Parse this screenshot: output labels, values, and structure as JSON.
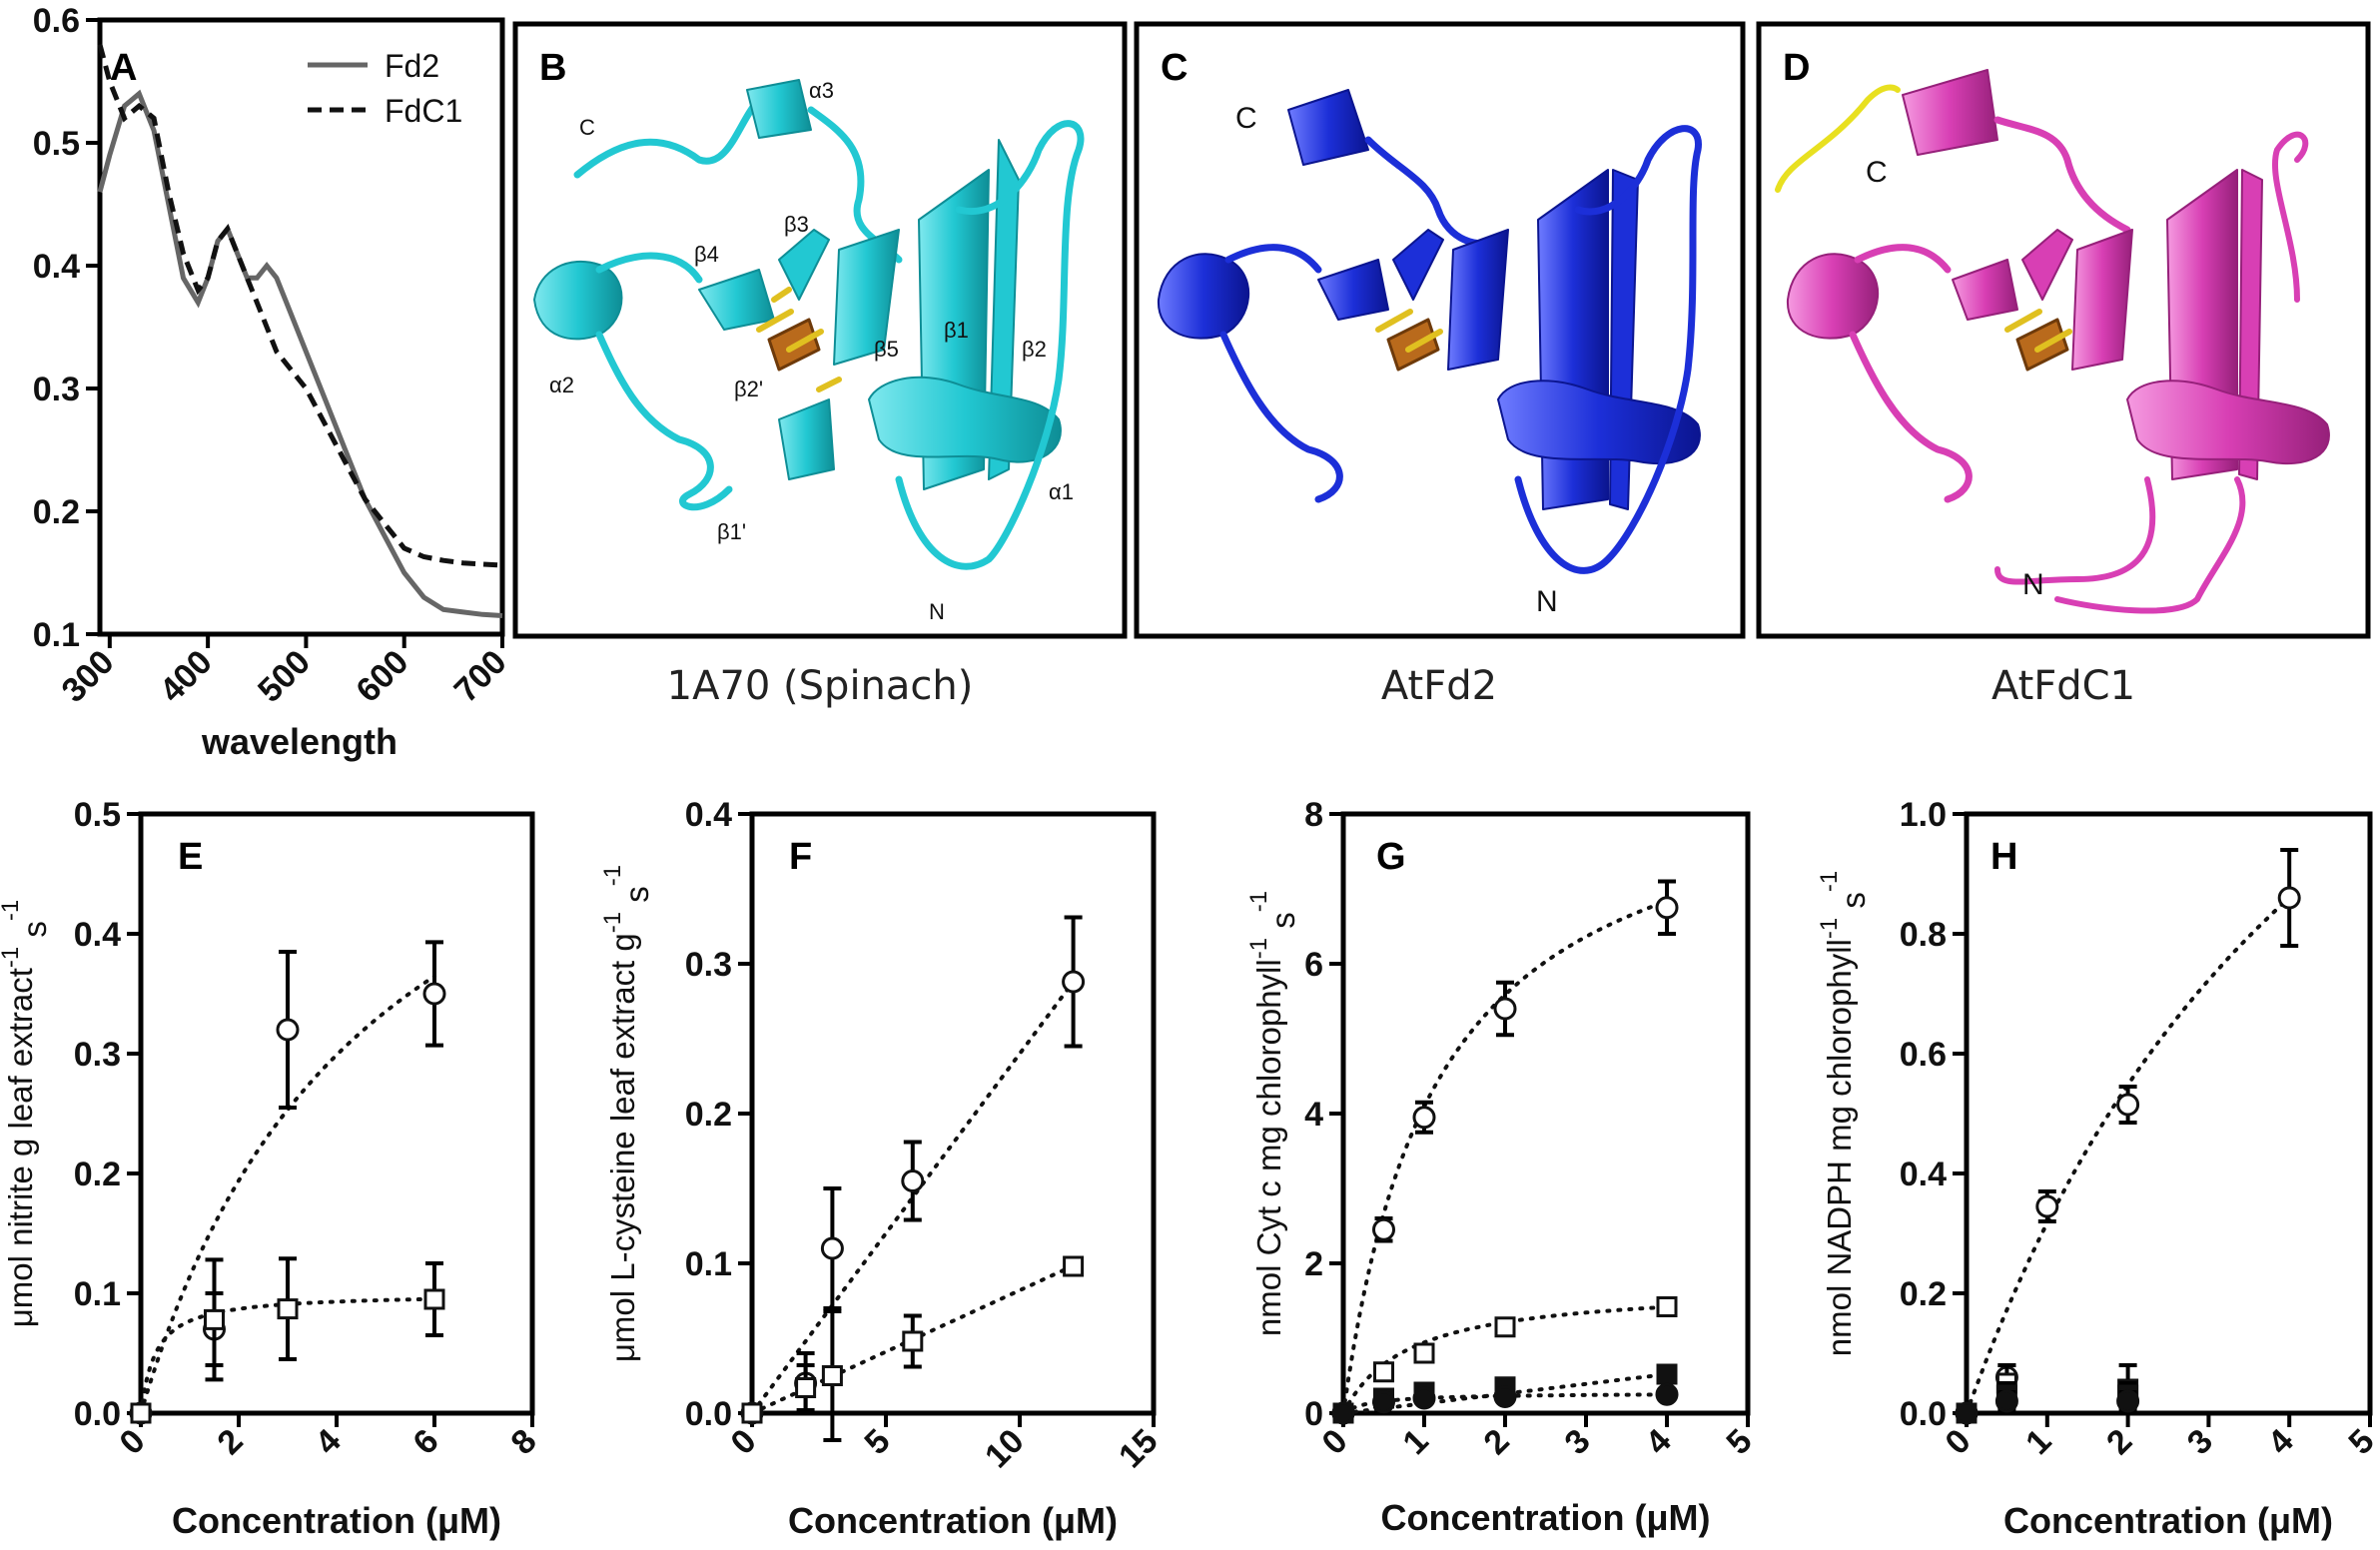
{
  "chart_data": [
    {
      "panel": "A",
      "type": "line",
      "xlabel": "wavelength",
      "ylabel": "",
      "xlim": [
        290,
        700
      ],
      "ylim": [
        0.1,
        0.6
      ],
      "xticks": [
        300,
        400,
        500,
        600,
        700
      ],
      "yticks": [
        0.1,
        0.2,
        0.3,
        0.4,
        0.5,
        0.6
      ],
      "legend_position": "top-right",
      "series": [
        {
          "name": "Fd2",
          "style": "solid",
          "color": "#666666",
          "x": [
            290,
            300,
            315,
            330,
            345,
            360,
            375,
            390,
            400,
            410,
            420,
            430,
            440,
            450,
            460,
            470,
            480,
            500,
            520,
            540,
            560,
            580,
            600,
            620,
            640,
            660,
            680,
            700
          ],
          "y": [
            0.46,
            0.49,
            0.53,
            0.54,
            0.51,
            0.45,
            0.39,
            0.37,
            0.39,
            0.42,
            0.43,
            0.41,
            0.39,
            0.39,
            0.4,
            0.39,
            0.37,
            0.33,
            0.29,
            0.25,
            0.21,
            0.18,
            0.15,
            0.13,
            0.12,
            0.118,
            0.116,
            0.115
          ]
        },
        {
          "name": "FdC1",
          "style": "dashed",
          "color": "#111111",
          "x": [
            290,
            300,
            315,
            330,
            345,
            360,
            375,
            390,
            400,
            410,
            420,
            430,
            440,
            450,
            460,
            470,
            480,
            500,
            520,
            540,
            560,
            580,
            600,
            620,
            640,
            660,
            680,
            700
          ],
          "y": [
            0.58,
            0.55,
            0.52,
            0.53,
            0.52,
            0.46,
            0.41,
            0.38,
            0.39,
            0.42,
            0.43,
            0.41,
            0.39,
            0.37,
            0.35,
            0.33,
            0.32,
            0.3,
            0.27,
            0.24,
            0.21,
            0.19,
            0.17,
            0.163,
            0.16,
            0.158,
            0.157,
            0.156
          ]
        }
      ]
    },
    {
      "panel": "E",
      "type": "scatter",
      "xlabel": "Concentration (μM)",
      "ylabel": "μmol nitrite g leaf extract",
      "ylabel_sup": "-1",
      "ylabel_tail": " s",
      "ylabel_sup2": "-1",
      "xlim": [
        0,
        8
      ],
      "ylim": [
        0,
        0.5
      ],
      "xticks": [
        0,
        2,
        4,
        6,
        8
      ],
      "yticks": [
        0.0,
        0.1,
        0.2,
        0.3,
        0.4,
        0.5
      ],
      "series": [
        {
          "marker": "open-circle",
          "x": [
            0,
            1.5,
            3,
            6
          ],
          "y": [
            0,
            0.07,
            0.32,
            0.35
          ],
          "err": [
            0,
            0.03,
            0.065,
            0.043
          ],
          "fit": {
            "kind": "mm",
            "vmax": 0.65,
            "km": 4.7
          }
        },
        {
          "marker": "open-square",
          "x": [
            0,
            1.5,
            3,
            6
          ],
          "y": [
            0,
            0.078,
            0.087,
            0.095
          ],
          "err": [
            0,
            0.05,
            0.042,
            0.03
          ],
          "fit": {
            "kind": "mm",
            "vmax": 0.1,
            "km": 0.3
          }
        }
      ]
    },
    {
      "panel": "F",
      "type": "scatter",
      "xlabel": "Concentration (μM)",
      "ylabel": "μmol L-cysteine leaf extract g",
      "ylabel_sup": "-1",
      "ylabel_tail": " s",
      "ylabel_sup2": "-1",
      "xlim": [
        0,
        15
      ],
      "ylim": [
        0,
        0.4
      ],
      "xticks": [
        0,
        5,
        10,
        15
      ],
      "yticks": [
        0.0,
        0.1,
        0.2,
        0.3,
        0.4
      ],
      "series": [
        {
          "marker": "open-circle",
          "x": [
            0,
            2,
            3,
            6,
            12
          ],
          "y": [
            0,
            0.02,
            0.11,
            0.155,
            0.288
          ],
          "err": [
            0,
            0.02,
            0.04,
            0.026,
            0.043
          ],
          "fit": {
            "kind": "linear",
            "slope": 0.024
          }
        },
        {
          "marker": "open-square",
          "x": [
            0,
            2,
            3,
            6,
            12
          ],
          "y": [
            0,
            0.017,
            0.025,
            0.048,
            0.098
          ],
          "err": [
            0,
            0.015,
            0.043,
            0.017,
            0.003
          ],
          "fit": {
            "kind": "linear",
            "slope": 0.0082
          }
        }
      ]
    },
    {
      "panel": "G",
      "type": "scatter",
      "xlabel": "Concentration (μM)",
      "ylabel": "nmol Cyt c mg chlorophyll",
      "ylabel_sup": "-1",
      "ylabel_tail": " s",
      "ylabel_sup2": "-1",
      "xlim": [
        0,
        5
      ],
      "ylim": [
        0,
        8
      ],
      "xticks": [
        0,
        1,
        2,
        3,
        4,
        5
      ],
      "yticks": [
        0,
        2,
        4,
        6,
        8
      ],
      "series": [
        {
          "marker": "open-circle",
          "x": [
            0,
            0.5,
            1,
            2,
            4
          ],
          "y": [
            0,
            2.45,
            3.95,
            5.4,
            6.75
          ],
          "err": [
            0,
            0.15,
            0.2,
            0.35,
            0.35
          ],
          "fit": {
            "kind": "mm",
            "vmax": 8.8,
            "km": 1.15
          }
        },
        {
          "marker": "open-square",
          "x": [
            0,
            0.5,
            1,
            2,
            4
          ],
          "y": [
            0,
            0.55,
            0.8,
            1.15,
            1.42
          ],
          "err": [
            0,
            0.05,
            0.05,
            0.05,
            0.05
          ],
          "fit": {
            "kind": "mm",
            "vmax": 1.7,
            "km": 0.8
          }
        },
        {
          "marker": "filled-square",
          "x": [
            0,
            0.5,
            1,
            2,
            4
          ],
          "y": [
            0,
            0.2,
            0.28,
            0.35,
            0.52
          ],
          "err": [
            0,
            0.04,
            0.04,
            0.04,
            0.04
          ],
          "fit": {
            "kind": "linear",
            "slope": 0.13
          }
        },
        {
          "marker": "filled-circle",
          "x": [
            0,
            0.5,
            1,
            2,
            4
          ],
          "y": [
            0,
            0.15,
            0.2,
            0.22,
            0.25
          ],
          "err": [
            0,
            0.03,
            0.03,
            0.03,
            0.03
          ],
          "fit": {
            "kind": "mm",
            "vmax": 0.27,
            "km": 0.35
          }
        }
      ]
    },
    {
      "panel": "H",
      "type": "scatter",
      "xlabel": "Concentration (μM)",
      "ylabel": "nmol NADPH mg chlorophyll",
      "ylabel_sup": "-1",
      "ylabel_tail": " s",
      "ylabel_sup2": "-1",
      "xlim": [
        0,
        5
      ],
      "ylim": [
        0,
        1.0
      ],
      "xticks": [
        0,
        1,
        2,
        3,
        4,
        5
      ],
      "yticks": [
        0.0,
        0.2,
        0.4,
        0.6,
        0.8,
        1.0
      ],
      "series": [
        {
          "marker": "open-circle",
          "x": [
            0,
            0.5,
            1,
            2,
            4
          ],
          "y": [
            0,
            0.06,
            0.345,
            0.515,
            0.86
          ],
          "err": [
            0,
            0.02,
            0.025,
            0.03,
            0.08
          ],
          "fit": {
            "kind": "mm",
            "vmax": 2.0,
            "km": 5.3
          }
        },
        {
          "marker": "open-square",
          "x": [
            0.5,
            2
          ],
          "y": [
            0.05,
            0.04
          ],
          "err": [
            0.03,
            0.04
          ],
          "fit": null
        },
        {
          "marker": "filled-square",
          "x": [
            0,
            0.5,
            2
          ],
          "y": [
            0,
            0.03,
            0.03
          ],
          "err": [
            0,
            0.02,
            0.02
          ],
          "fit": null
        },
        {
          "marker": "filled-circle",
          "x": [
            0,
            0.5,
            2
          ],
          "y": [
            0,
            0.02,
            0.02
          ],
          "err": [
            0,
            0.015,
            0.015
          ],
          "fit": null
        }
      ]
    }
  ],
  "structures": [
    {
      "panel": "B",
      "caption": "1A70 (Spinach)",
      "color": "#22c8d2",
      "dark": "#0e8e96",
      "labels": [
        "C",
        "α3",
        "β4",
        "β3",
        "α2",
        "β5",
        "β1",
        "β2",
        "β2'",
        "α1",
        "β1'",
        "N"
      ]
    },
    {
      "panel": "C",
      "caption": "AtFd2",
      "color": "#1c2fd8",
      "dark": "#0b1590",
      "labels": [
        "C",
        "N"
      ]
    },
    {
      "panel": "D",
      "caption": "AtFdC1",
      "color": "#d83fb4",
      "dark": "#96207a",
      "tail_color": "#e8e020",
      "labels": [
        "C",
        "N"
      ]
    }
  ]
}
